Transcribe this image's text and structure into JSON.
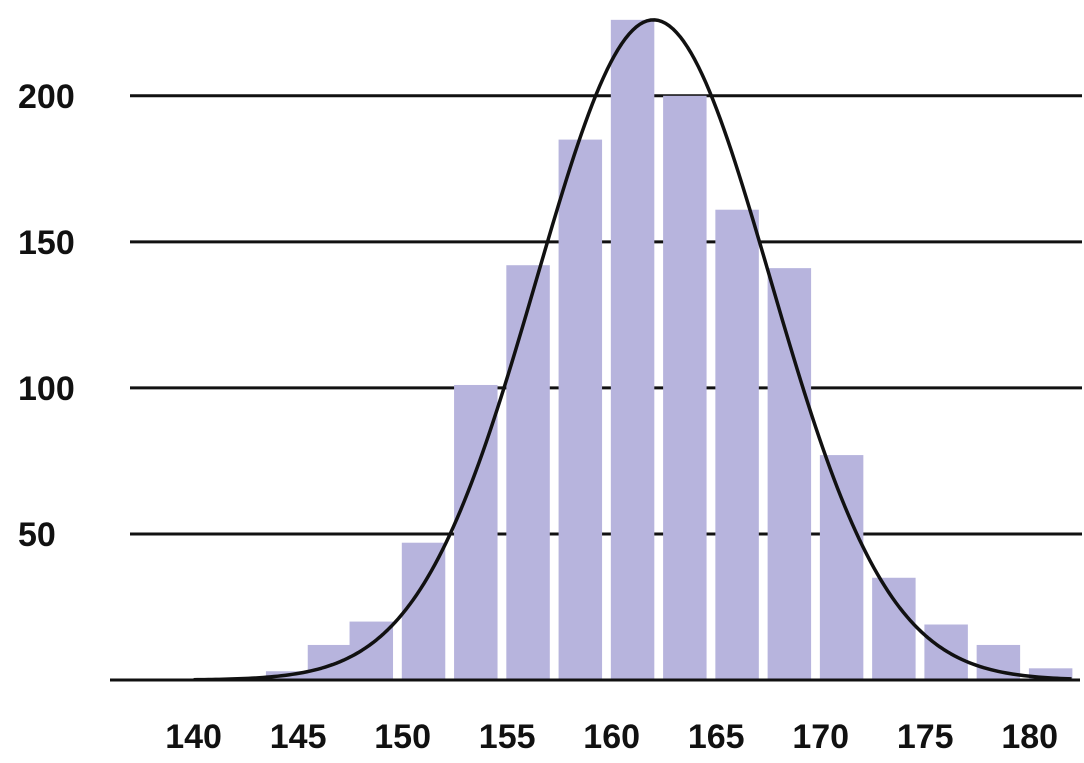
{
  "chart_data": {
    "type": "bar",
    "x_tick_labels": [
      "140",
      "145",
      "150",
      "155",
      "160",
      "165",
      "170",
      "175",
      "180"
    ],
    "y_tick_labels": [
      "50",
      "100",
      "150",
      "200"
    ],
    "y_ticks": [
      50,
      100,
      150,
      200
    ],
    "x_ticks": [
      140,
      145,
      150,
      155,
      160,
      165,
      170,
      175,
      180
    ],
    "bins": [
      {
        "x": 144.5,
        "value": 3
      },
      {
        "x": 146.5,
        "value": 12
      },
      {
        "x": 148.5,
        "value": 20
      },
      {
        "x": 151,
        "value": 47
      },
      {
        "x": 153.5,
        "value": 101
      },
      {
        "x": 156,
        "value": 142
      },
      {
        "x": 158.5,
        "value": 185
      },
      {
        "x": 161,
        "value": 226
      },
      {
        "x": 163.5,
        "value": 200
      },
      {
        "x": 166,
        "value": 161
      },
      {
        "x": 168.5,
        "value": 141
      },
      {
        "x": 171,
        "value": 77
      },
      {
        "x": 173.5,
        "value": 35
      },
      {
        "x": 176,
        "value": 19
      },
      {
        "x": 178.5,
        "value": 12
      },
      {
        "x": 181,
        "value": 4
      }
    ],
    "curve": {
      "type": "normal",
      "mean": 162,
      "std_dev": 5.6,
      "peak": 226
    },
    "xlim": [
      136,
      182.5
    ],
    "ylim": [
      0,
      228
    ],
    "grid": true,
    "bar_color": "#b7b4dd",
    "curve_color": "#111111",
    "grid_color": "#111111"
  }
}
